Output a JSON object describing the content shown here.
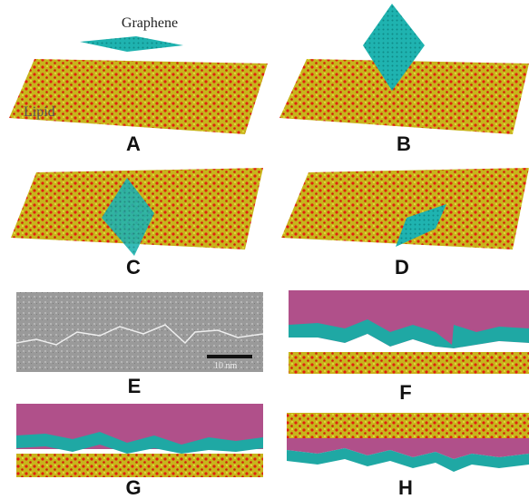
{
  "annotations": {
    "graphene": "Graphene",
    "lipid": "Lipid",
    "scale_bar": "10 nm"
  },
  "panels": [
    {
      "label": "A"
    },
    {
      "label": "B"
    },
    {
      "label": "C"
    },
    {
      "label": "D"
    },
    {
      "label": "E"
    },
    {
      "label": "F"
    },
    {
      "label": "G"
    },
    {
      "label": "H"
    }
  ]
}
